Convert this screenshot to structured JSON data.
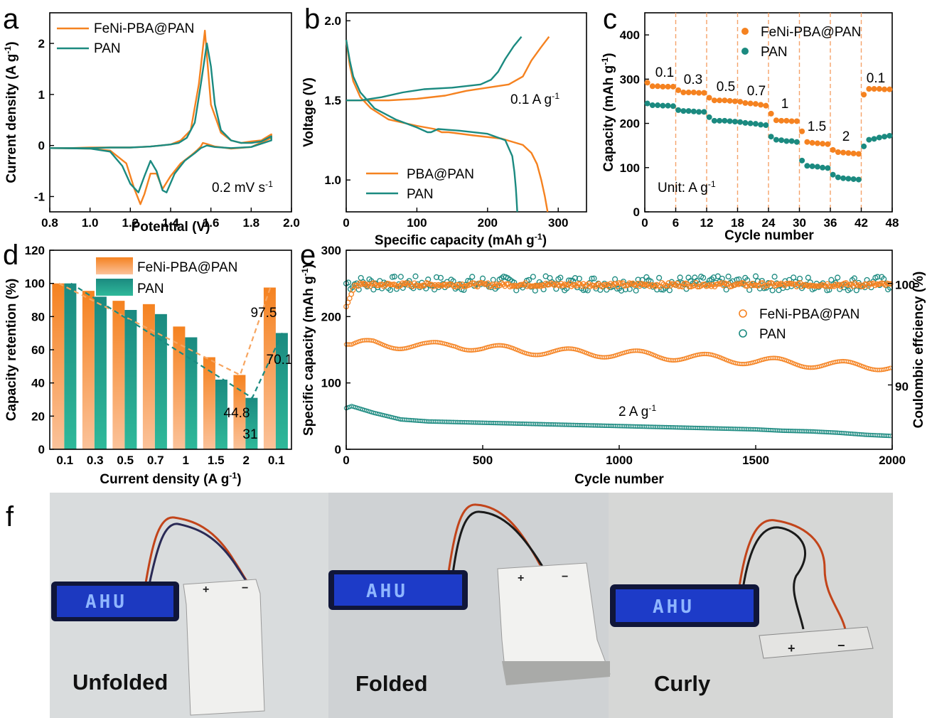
{
  "colors": {
    "orange": "#f58220",
    "teal": "#1b8a80",
    "axis": "#000000",
    "photo_bg1": "#d9dcdd",
    "photo_bg2": "#cfd2d4",
    "photo_bg3": "#d6d7d6",
    "led_blue": "#1f3fd8"
  },
  "panels": {
    "a": "a",
    "b": "b",
    "c": "c",
    "d": "d",
    "e": "e",
    "f": "f"
  },
  "chart_data": [
    {
      "panel": "a",
      "type": "line",
      "xlabel": "Potential (V)",
      "ylabel": "Current density (A g⁻¹)",
      "xlim": [
        0.8,
        2.0
      ],
      "ylim": [
        -1.3,
        2.6
      ],
      "xticks": [
        "0.8",
        "1.0",
        "1.2",
        "1.4",
        "1.6",
        "1.8",
        "2.0"
      ],
      "yticks": [
        "-1",
        "0",
        "1",
        "2"
      ],
      "annotation": "0.2 mV s⁻¹",
      "series": [
        {
          "name": "FeNi-PBA@PAN",
          "color": "orange",
          "x": [
            0.8,
            1.0,
            1.1,
            1.18,
            1.22,
            1.25,
            1.27,
            1.3,
            1.33,
            1.36,
            1.4,
            1.45,
            1.5,
            1.53,
            1.55,
            1.56,
            1.58,
            1.62,
            1.7,
            1.8,
            1.9,
            1.9,
            1.85,
            1.8,
            1.75,
            1.7,
            1.65,
            1.6,
            1.57,
            1.54,
            1.5,
            1.45,
            1.4,
            1.35,
            1.3,
            1.25,
            1.2,
            1.1,
            1.0,
            0.9,
            0.8
          ],
          "y": [
            -0.05,
            -0.06,
            -0.1,
            -0.35,
            -0.85,
            -1.15,
            -0.95,
            -0.55,
            -0.55,
            -0.85,
            -0.6,
            -0.35,
            -0.2,
            -0.1,
            -0.02,
            0.05,
            0.03,
            -0.02,
            -0.06,
            -0.03,
            0.15,
            0.22,
            0.1,
            0.08,
            0.05,
            0.1,
            0.25,
            0.8,
            2.25,
            1.2,
            0.3,
            0.1,
            0.02,
            0.0,
            -0.02,
            -0.03,
            -0.04,
            -0.04,
            -0.04,
            -0.05,
            -0.05
          ]
        },
        {
          "name": "PAN",
          "color": "teal",
          "x": [
            0.8,
            1.0,
            1.1,
            1.16,
            1.2,
            1.24,
            1.27,
            1.3,
            1.33,
            1.36,
            1.38,
            1.42,
            1.47,
            1.52,
            1.55,
            1.58,
            1.62,
            1.7,
            1.8,
            1.9,
            1.9,
            1.85,
            1.8,
            1.75,
            1.7,
            1.65,
            1.62,
            1.6,
            1.58,
            1.55,
            1.52,
            1.48,
            1.44,
            1.4,
            1.35,
            1.3,
            1.25,
            1.2,
            1.1,
            1.0,
            0.9,
            0.8
          ],
          "y": [
            -0.05,
            -0.06,
            -0.12,
            -0.4,
            -0.75,
            -0.92,
            -0.6,
            -0.3,
            -0.5,
            -0.88,
            -0.92,
            -0.55,
            -0.3,
            -0.15,
            -0.05,
            0.0,
            -0.03,
            -0.05,
            -0.03,
            0.1,
            0.18,
            0.08,
            0.05,
            0.05,
            0.1,
            0.3,
            0.8,
            1.55,
            2.0,
            1.2,
            0.45,
            0.15,
            0.05,
            0.02,
            0.0,
            -0.02,
            -0.03,
            -0.04,
            -0.04,
            -0.05,
            -0.05,
            -0.05
          ]
        }
      ]
    },
    {
      "panel": "b",
      "type": "line",
      "xlabel": "Specific capacity (mAh g⁻¹)",
      "ylabel": "Voltage (V)",
      "xlim": [
        0,
        340
      ],
      "ylim": [
        0.8,
        2.05
      ],
      "xticks": [
        "0",
        "100",
        "200",
        "300"
      ],
      "yticks": [
        "1.0",
        "1.5",
        "2.0"
      ],
      "annotation": "0.1 A g⁻¹",
      "series": [
        {
          "name": "PBA@PAN",
          "color": "orange",
          "part": "discharge",
          "x": [
            0,
            5,
            10,
            20,
            35,
            60,
            100,
            125,
            135,
            145,
            180,
            220,
            250,
            262,
            270,
            276,
            281,
            285
          ],
          "y": [
            1.88,
            1.72,
            1.62,
            1.52,
            1.45,
            1.38,
            1.34,
            1.32,
            1.3,
            1.3,
            1.28,
            1.26,
            1.22,
            1.17,
            1.1,
            1.0,
            0.9,
            0.8
          ]
        },
        {
          "name": "PBA@PAN charge",
          "color": "orange",
          "part": "charge",
          "x": [
            0,
            20,
            60,
            100,
            140,
            170,
            200,
            230,
            250,
            262,
            275,
            287
          ],
          "y": [
            1.5,
            1.5,
            1.5,
            1.51,
            1.53,
            1.56,
            1.58,
            1.6,
            1.65,
            1.75,
            1.83,
            1.9
          ]
        },
        {
          "name": "PAN",
          "color": "teal",
          "part": "discharge",
          "x": [
            0,
            5,
            10,
            20,
            40,
            70,
            100,
            115,
            120,
            130,
            160,
            200,
            225,
            235,
            238,
            240,
            241,
            242
          ],
          "y": [
            1.88,
            1.75,
            1.65,
            1.55,
            1.45,
            1.38,
            1.33,
            1.3,
            1.3,
            1.32,
            1.31,
            1.29,
            1.25,
            1.15,
            1.05,
            0.95,
            0.88,
            0.8
          ]
        },
        {
          "name": "PAN charge",
          "color": "teal",
          "part": "charge",
          "x": [
            0,
            20,
            50,
            80,
            110,
            150,
            190,
            205,
            215,
            225,
            237,
            248
          ],
          "y": [
            1.5,
            1.5,
            1.52,
            1.55,
            1.57,
            1.58,
            1.6,
            1.63,
            1.68,
            1.76,
            1.84,
            1.9
          ]
        }
      ]
    },
    {
      "panel": "c",
      "type": "scatter",
      "xlabel": "Cycle number",
      "ylabel": "Capacity (mAh g⁻¹)",
      "xlim": [
        0,
        48
      ],
      "ylim": [
        0,
        450
      ],
      "xticks": [
        "0",
        "6",
        "12",
        "18",
        "24",
        "30",
        "36",
        "42",
        "48"
      ],
      "yticks": [
        "0",
        "100",
        "200",
        "300",
        "400"
      ],
      "dividers": [
        6,
        12,
        18,
        24,
        30,
        36,
        42
      ],
      "rate_labels": [
        "0.1",
        "0.3",
        "0.5",
        "0.7",
        "1",
        "1.5",
        "2",
        "0.1"
      ],
      "unit_note": "Unit: A g⁻¹",
      "series": [
        {
          "name": "FeNi-PBA@PAN",
          "color": "orange",
          "y": [
            292,
            284,
            284,
            283,
            283,
            283,
            275,
            270,
            270,
            270,
            269,
            269,
            258,
            252,
            252,
            252,
            251,
            250,
            249,
            246,
            245,
            244,
            242,
            240,
            222,
            207,
            206,
            206,
            205,
            205,
            182,
            158,
            156,
            155,
            154,
            153,
            140,
            135,
            134,
            133,
            132,
            131,
            265,
            278,
            278,
            278,
            277,
            277
          ]
        },
        {
          "name": "PAN",
          "color": "teal",
          "y": [
            245,
            241,
            241,
            240,
            240,
            239,
            230,
            228,
            228,
            227,
            226,
            226,
            214,
            206,
            206,
            206,
            205,
            204,
            203,
            201,
            200,
            199,
            197,
            196,
            170,
            163,
            162,
            160,
            160,
            158,
            116,
            104,
            103,
            102,
            100,
            99,
            84,
            78,
            76,
            75,
            74,
            73,
            148,
            163,
            165,
            168,
            170,
            172
          ]
        }
      ]
    },
    {
      "panel": "d",
      "type": "bar",
      "xlabel": "Current density (A g⁻¹)",
      "ylabel": "Capacity retention (%)",
      "ylim": [
        0,
        120
      ],
      "categories": [
        "0.1",
        "0.3",
        "0.5",
        "0.7",
        "1",
        "1.5",
        "2",
        "0.1"
      ],
      "yticks": [
        "0",
        "20",
        "40",
        "60",
        "80",
        "100",
        "120"
      ],
      "series": [
        {
          "name": "FeNi-PBA@PAN",
          "color": "orange",
          "values": [
            100,
            95.5,
            89.5,
            87.5,
            74,
            55.5,
            44.8,
            97.5
          ]
        },
        {
          "name": "PAN",
          "color": "teal",
          "values": [
            100,
            92,
            84,
            81.5,
            67.5,
            42,
            31,
            70.1
          ]
        }
      ],
      "data_labels": {
        "orange_2": "44.8",
        "orange_last": "97.5",
        "teal_2": "31",
        "teal_last": "70.1"
      }
    },
    {
      "panel": "e",
      "type": "scatter",
      "xlabel": "Cycle number",
      "ylabel": "Specific capacity (mAh g⁻¹)",
      "y2label": "Coulombic effciency (%)",
      "xlim": [
        0,
        2000
      ],
      "ylim": [
        0,
        300
      ],
      "xticks": [
        "0",
        "500",
        "1000",
        "1500",
        "2000"
      ],
      "yticks": [
        "0",
        "100",
        "200",
        "300"
      ],
      "y2ticks": [
        "90",
        "100"
      ],
      "annotation": "2 A g⁻¹",
      "series": [
        {
          "name": "FeNi-PBA@PAN",
          "color": "orange",
          "x": [
            0,
            20,
            60,
            100,
            200,
            300,
            400,
            500,
            600,
            700,
            800,
            900,
            1000,
            1100,
            1200,
            1300,
            1400,
            1500,
            1600,
            1700,
            1800,
            1900,
            2000
          ],
          "y": [
            158,
            155,
            158,
            160,
            157,
            155,
            158,
            152,
            150,
            148,
            146,
            145,
            144,
            142,
            140,
            138,
            136,
            133,
            131,
            129,
            127,
            126,
            125
          ]
        },
        {
          "name": "PAN",
          "color": "teal",
          "x": [
            0,
            20,
            60,
            100,
            200,
            300,
            400,
            500,
            600,
            700,
            800,
            900,
            1000,
            1100,
            1200,
            1300,
            1400,
            1500,
            1600,
            1700,
            1800,
            1900,
            2000
          ],
          "y": [
            62,
            65,
            60,
            55,
            45,
            42,
            41,
            40,
            39,
            38,
            37,
            36,
            35,
            34,
            33,
            32,
            31,
            30,
            28,
            27,
            25,
            22,
            20
          ]
        },
        {
          "name": "FeNi-PBA@PAN CE",
          "color": "orange",
          "ce": 100,
          "cap_equiv": 248
        },
        {
          "name": "PAN CE",
          "color": "teal",
          "ce": 100,
          "cap_equiv": 250
        }
      ]
    }
  ],
  "photos": {
    "labels": [
      "Unfolded",
      "Folded",
      "Curly"
    ],
    "led_text": "AHU"
  }
}
